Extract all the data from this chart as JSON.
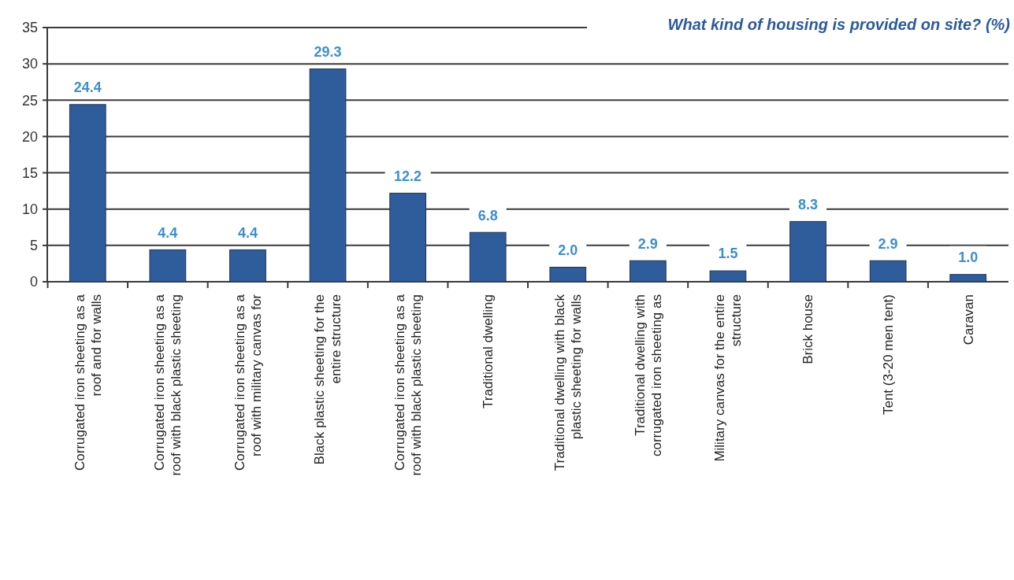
{
  "chart_data": {
    "type": "bar",
    "title": "What kind of housing is provided on site? (%)",
    "categories": [
      "Corrugated iron sheeting as a roof and for walls",
      "Corrugated iron sheeting as a roof with black plastic sheeting",
      "Corrugated iron sheeting as a roof with military canvas for",
      "Black plastic sheeting for the entire structure",
      "Corrugated iron sheeting as a roof with black plastic sheeting",
      "Traditional dwelling",
      "Traditional dwelling with black plastic sheeting for walls",
      "Traditional dwelling with corrugated iron sheeting as",
      "Military canvas for the entire structure",
      "Brick house",
      "Tent (3-20 men tent)",
      "Caravan"
    ],
    "values": [
      24.4,
      4.4,
      4.4,
      29.3,
      12.2,
      6.8,
      2.0,
      2.9,
      1.5,
      8.3,
      2.9,
      1.0
    ],
    "value_labels": [
      "24.4",
      "4.4",
      "4.4",
      "29.3",
      "12.2",
      "6.8",
      "2.0",
      "2.9",
      "1.5",
      "8.3",
      "2.9",
      "1.0"
    ],
    "color": "#2f5d9b",
    "ylim": [
      0,
      35
    ],
    "yticks": [
      0,
      5,
      10,
      15,
      20,
      25,
      30,
      35
    ],
    "grid": "y"
  }
}
